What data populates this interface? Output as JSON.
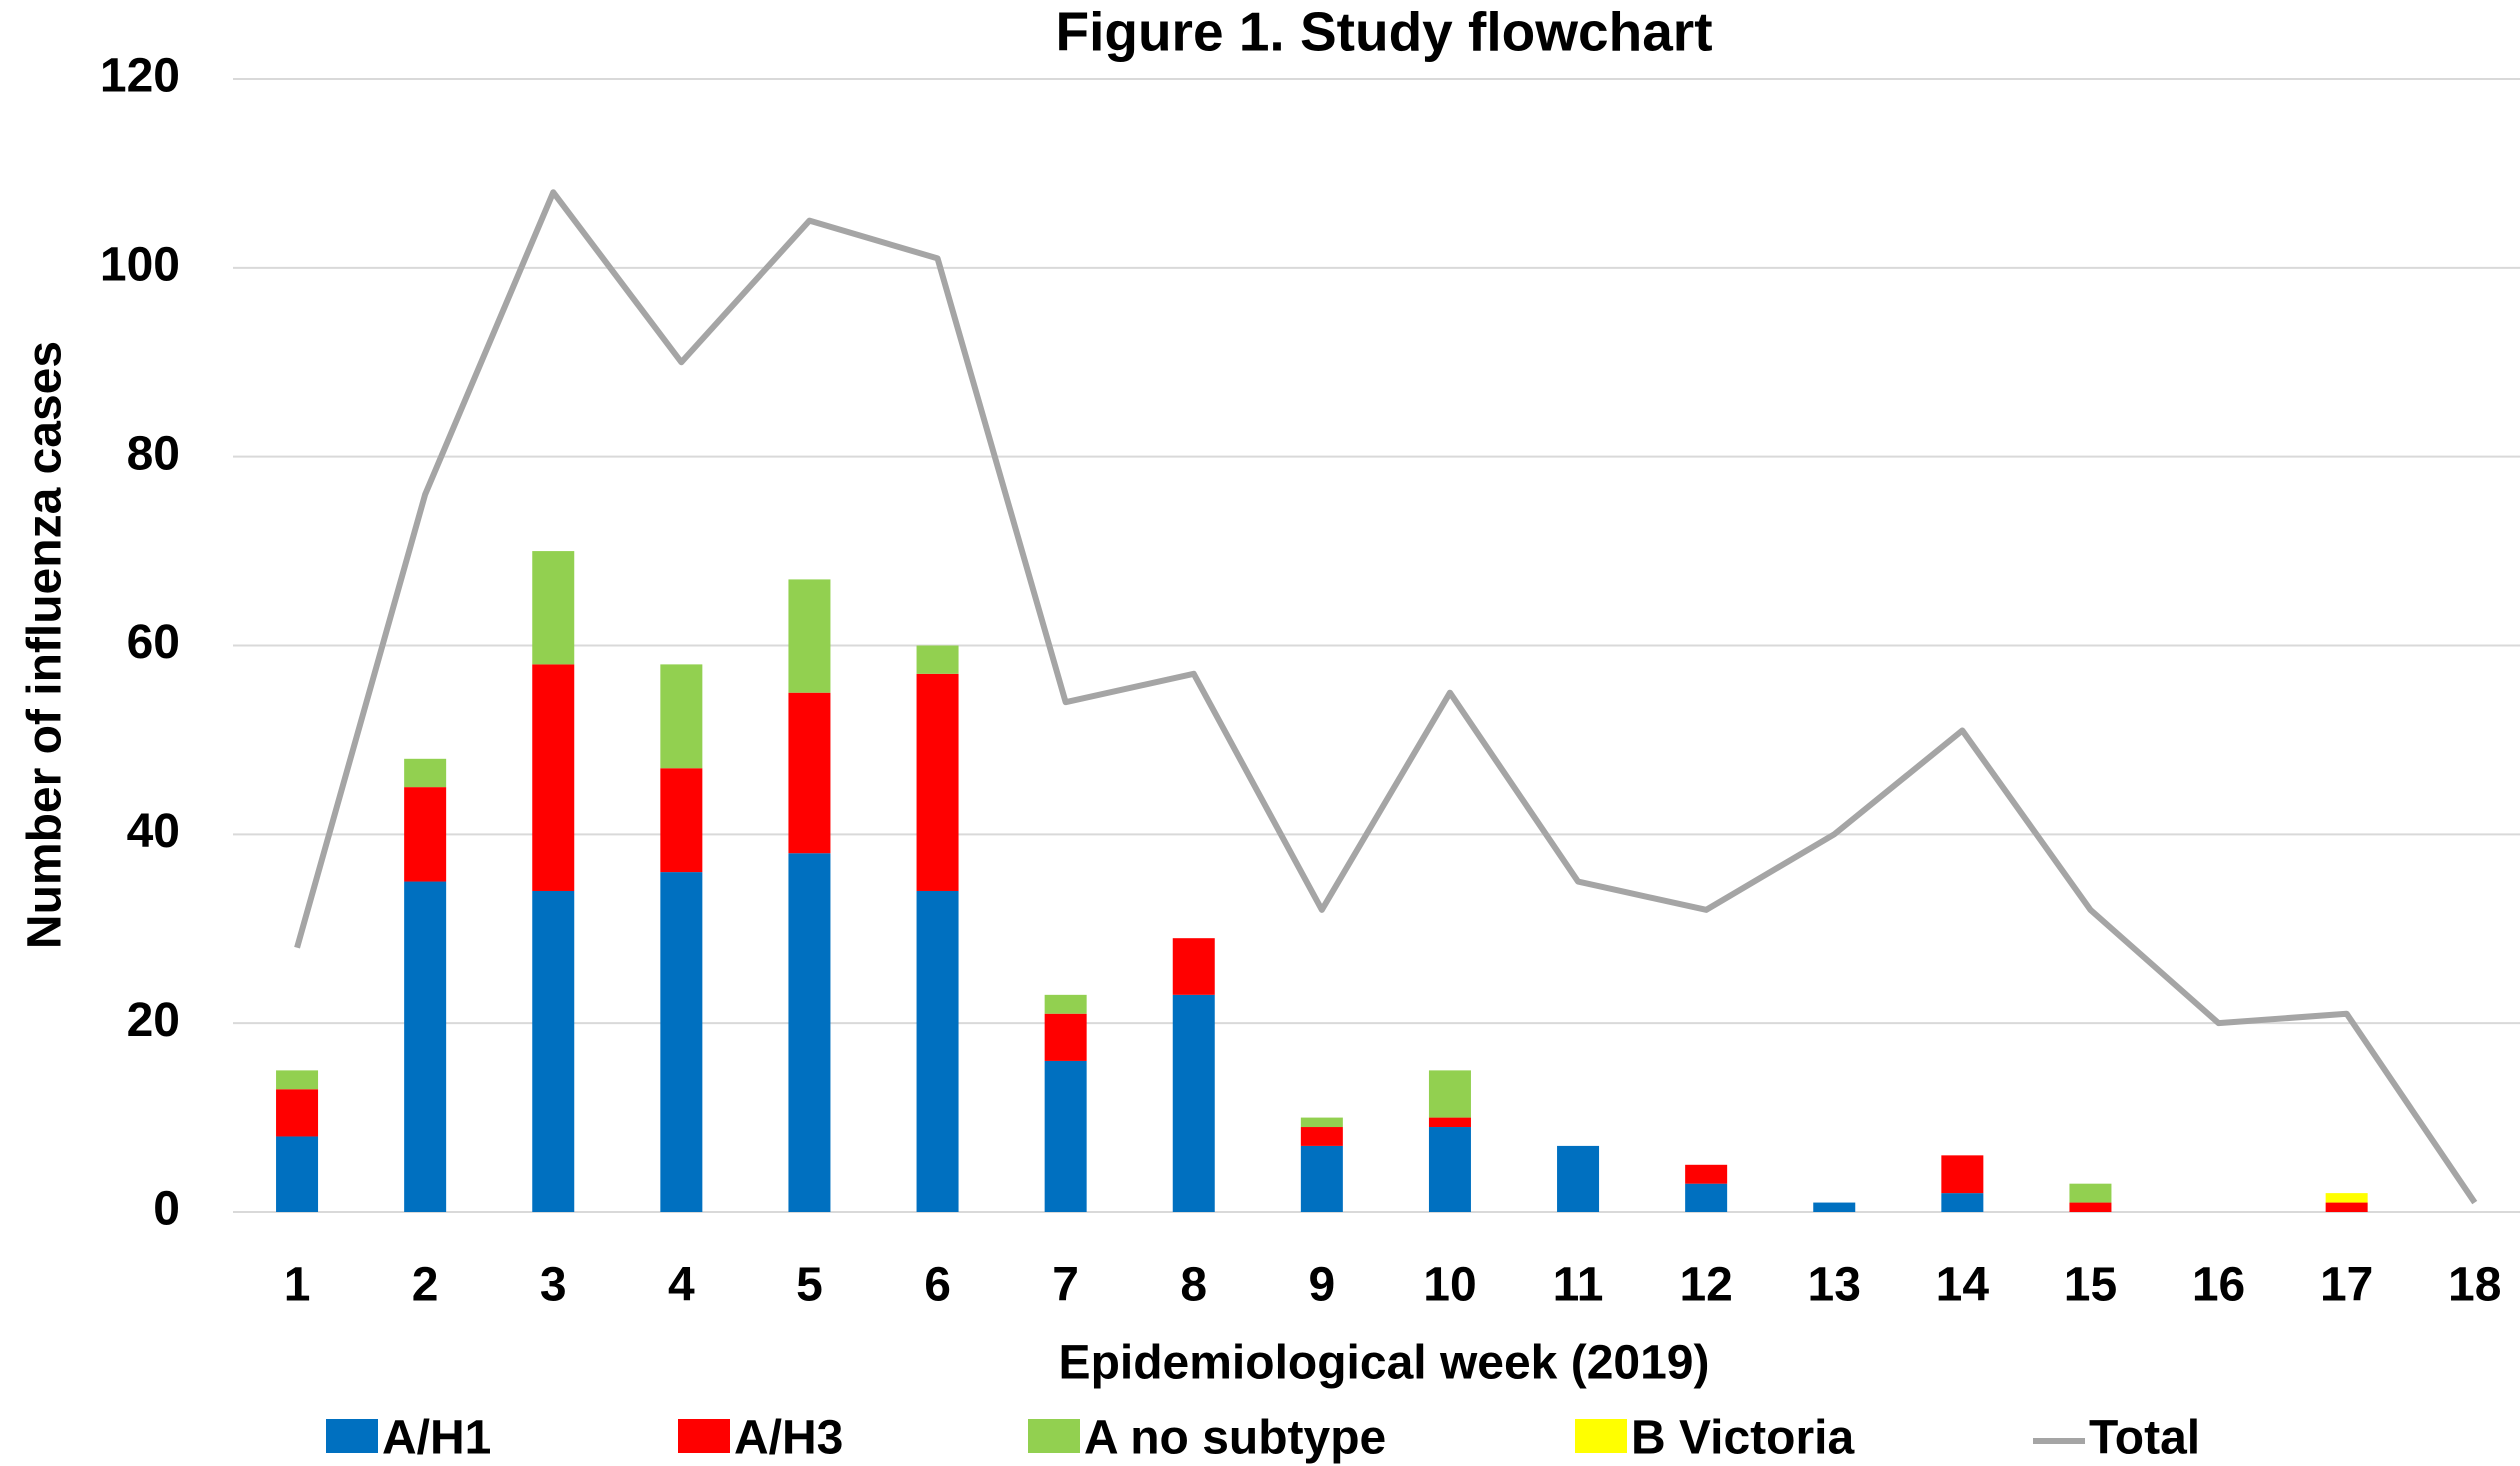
{
  "chart_data": {
    "type": "bar",
    "stacked": true,
    "title": "Figure 1. Study flowchart",
    "x_label": "Epidemiological week (2019)",
    "y_label": "Number of influenza cases",
    "categories": [
      "1",
      "2",
      "3",
      "4",
      "5",
      "6",
      "7",
      "8",
      "9",
      "10",
      "11",
      "12",
      "13",
      "14",
      "15",
      "16",
      "17",
      "18"
    ],
    "series": [
      {
        "name": "A/H1",
        "color": "#0070c0",
        "values": [
          8,
          35,
          34,
          36,
          38,
          34,
          16,
          23,
          7,
          9,
          7,
          3,
          1,
          2,
          0,
          0,
          0,
          0
        ]
      },
      {
        "name": "A/H3",
        "color": "#ff0000",
        "values": [
          5,
          10,
          24,
          11,
          17,
          23,
          5,
          6,
          2,
          1,
          0,
          2,
          0,
          4,
          1,
          0,
          1,
          0
        ]
      },
      {
        "name": "A no subtype",
        "color": "#92d050",
        "values": [
          2,
          3,
          12,
          11,
          12,
          3,
          2,
          0,
          1,
          5,
          0,
          0,
          0,
          0,
          2,
          0,
          0,
          0
        ]
      },
      {
        "name": "B Victoria",
        "color": "#ffff00",
        "values": [
          0,
          0,
          0,
          0,
          0,
          0,
          0,
          0,
          0,
          0,
          0,
          0,
          0,
          0,
          0,
          0,
          1,
          0
        ]
      },
      {
        "name": "Total",
        "color": "#a5a5a5",
        "type": "line",
        "values": [
          28,
          76,
          108,
          90,
          105,
          101,
          54,
          57,
          32,
          55,
          35,
          32,
          40,
          51,
          32,
          20,
          21,
          1
        ]
      }
    ],
    "ylim": [
      0,
      120
    ],
    "yticks": [
      0,
      20,
      40,
      60,
      80,
      100,
      120
    ],
    "grid": true,
    "legend": "bottom"
  }
}
